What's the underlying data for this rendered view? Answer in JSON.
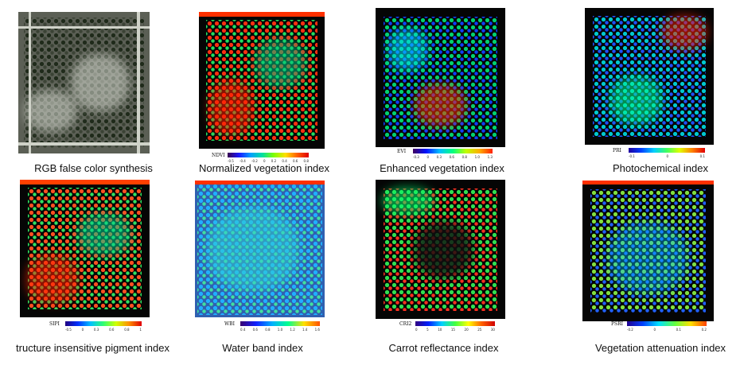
{
  "panels": [
    {
      "caption": "RGB false color synthesis",
      "legend": null
    },
    {
      "caption": "Normalized vegetation index",
      "legend": {
        "abbr": "NDVI",
        "ticks": [
          "-0.5",
          "-0.4",
          "-0.2",
          "0",
          "0.2",
          "0.4",
          "0.6",
          "0.8"
        ],
        "gradient": "grad-ndvi"
      }
    },
    {
      "caption": "Enhanced vegetation index",
      "legend": {
        "abbr": "EVI",
        "ticks": [
          "-0.3",
          "0",
          "0.3",
          "0.6",
          "0.8",
          "1.0",
          "1.3"
        ],
        "gradient": "grad-evi"
      }
    },
    {
      "caption": "Photochemical index",
      "legend": {
        "abbr": "PRI",
        "ticks": [
          "-0.1",
          "0",
          "0.1"
        ],
        "gradient": "grad-pri"
      }
    },
    {
      "caption": "tructure insensitive pigment index",
      "legend": {
        "abbr": "SIPI",
        "ticks": [
          "-0.5",
          "0",
          "0.3",
          "0.6",
          "0.8",
          "1"
        ],
        "gradient": "grad-sipi"
      }
    },
    {
      "caption": "Water band index",
      "legend": {
        "abbr": "WBI",
        "ticks": [
          "0.4",
          "0.6",
          "0.8",
          "1.0",
          "1.2",
          "1.4",
          "1.6"
        ],
        "gradient": "grad-wbi"
      }
    },
    {
      "caption": "Carrot reflectance index",
      "legend": {
        "abbr": "CRI2",
        "ticks": [
          "0",
          "5",
          "10",
          "15",
          "20",
          "25",
          "30"
        ],
        "gradient": "grad-cri"
      }
    },
    {
      "caption": "Vegetation attenuation index",
      "legend": {
        "abbr": "PSRI",
        "ticks": [
          "-0.2",
          "0",
          "0.1",
          "0.2"
        ],
        "gradient": "grad-psri"
      }
    }
  ]
}
